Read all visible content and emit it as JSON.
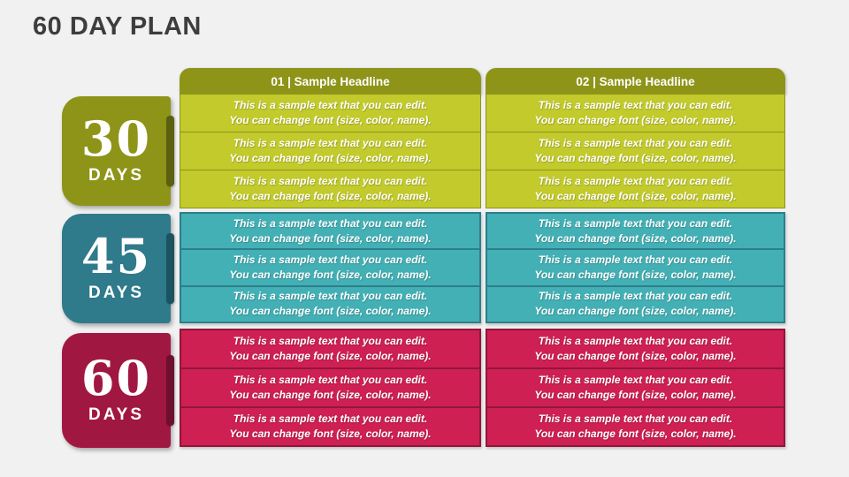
{
  "slide": {
    "title": "60 DAY PLAN"
  },
  "columns": [
    {
      "header": "01 | Sample Headline"
    },
    {
      "header": "02 | Sample Headline"
    }
  ],
  "groups": [
    {
      "number": "30",
      "unit": "DAYS",
      "columns": [
        {
          "rows": [
            {
              "line1": "This is a sample text that you can edit.",
              "line2": "You can change font (size, color, name)."
            },
            {
              "line1": "This is a sample text that you can edit.",
              "line2": "You can change font (size, color, name)."
            },
            {
              "line1": "This is a sample text that you can edit.",
              "line2": "You can change font (size, color, name)."
            }
          ]
        },
        {
          "rows": [
            {
              "line1": "This is a sample text that you can edit.",
              "line2": "You can change font (size, color, name)."
            },
            {
              "line1": "This is a sample text that you can edit.",
              "line2": "You can change font (size, color, name)."
            },
            {
              "line1": "This is a sample text that you can edit.",
              "line2": "You can change font (size, color, name)."
            }
          ]
        }
      ]
    },
    {
      "number": "45",
      "unit": "DAYS",
      "columns": [
        {
          "rows": [
            {
              "line1": "This is a sample text that you can edit.",
              "line2": "You can change font (size, color, name)."
            },
            {
              "line1": "This is a sample text that you can edit.",
              "line2": "You can change font (size, color, name)."
            },
            {
              "line1": "This is a sample text that you can edit.",
              "line2": "You can change font (size, color, name)."
            }
          ]
        },
        {
          "rows": [
            {
              "line1": "This is a sample text that you can edit.",
              "line2": "You can change font (size, color, name)."
            },
            {
              "line1": "This is a sample text that you can edit.",
              "line2": "You can change font (size, color, name)."
            },
            {
              "line1": "This is a sample text that you can edit.",
              "line2": "You can change font (size, color, name)."
            }
          ]
        }
      ]
    },
    {
      "number": "60",
      "unit": "DAYS",
      "columns": [
        {
          "rows": [
            {
              "line1": "This is a sample text that you can edit.",
              "line2": "You can change font (size, color, name)."
            },
            {
              "line1": "This is a sample text that you can edit.",
              "line2": "You can change font (size, color, name)."
            },
            {
              "line1": "This is a sample text that you can edit.",
              "line2": "You can change font (size, color, name)."
            }
          ]
        },
        {
          "rows": [
            {
              "line1": "This is a sample text that you can edit.",
              "line2": "You can change font (size, color, name)."
            },
            {
              "line1": "This is a sample text that you can edit.",
              "line2": "You can change font (size, color, name)."
            },
            {
              "line1": "This is a sample text that you can edit.",
              "line2": "You can change font (size, color, name)."
            }
          ]
        }
      ]
    }
  ],
  "theme": {
    "background": "#f1f1f1",
    "title_color": "#3d3d3d",
    "olive_dark": "#8e9418",
    "olive_light": "#c2ca2c",
    "olive_spine": "#5b6010",
    "teal_tab": "#2f7a8b",
    "teal_light": "#43b0b5",
    "teal_border": "#2c7f8b",
    "teal_spine": "#1c5361",
    "crimson_tab": "#a01842",
    "crimson_light": "#ce2052",
    "crimson_border": "#91163c",
    "crimson_spine": "#6e0f2f",
    "text_color": "#ffffff"
  }
}
